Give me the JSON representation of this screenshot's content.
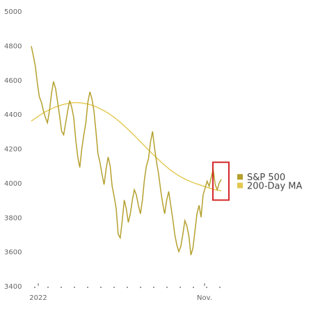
{
  "chart_data": {
    "type": "line",
    "title": "",
    "xlabel": "",
    "ylabel": "",
    "ylim": [
      3400,
      5000
    ],
    "y_ticks": [
      "5000",
      "4800",
      "4600",
      "4400",
      "4200",
      "4000",
      "3800",
      "3600",
      "3400"
    ],
    "x_tick_labels": [
      "2022",
      "Nov."
    ],
    "grid": false,
    "legend_position": "right",
    "highlight_box_color": "#d62728",
    "series": [
      {
        "name": "S&P 500",
        "color": "#b5a02e",
        "values": [
          4796,
          4740,
          4680,
          4580,
          4500,
          4470,
          4420,
          4380,
          4350,
          4420,
          4520,
          4590,
          4550,
          4470,
          4390,
          4300,
          4280,
          4350,
          4420,
          4480,
          4440,
          4380,
          4250,
          4150,
          4090,
          4200,
          4280,
          4350,
          4470,
          4530,
          4490,
          4420,
          4300,
          4170,
          4120,
          4050,
          3990,
          4080,
          4150,
          4100,
          3980,
          3920,
          3850,
          3700,
          3680,
          3780,
          3900,
          3850,
          3770,
          3820,
          3900,
          3960,
          3930,
          3870,
          3820,
          3900,
          4020,
          4100,
          4140,
          4240,
          4300,
          4200,
          4120,
          4050,
          3960,
          3880,
          3820,
          3900,
          3950,
          3870,
          3790,
          3700,
          3640,
          3600,
          3630,
          3700,
          3780,
          3750,
          3690,
          3580,
          3620,
          3720,
          3820,
          3870,
          3800,
          3930,
          3970,
          4010,
          3980,
          4030,
          4080,
          3990,
          3960,
          4000,
          4020
        ]
      },
      {
        "name": "200-Day MA",
        "color": "#e3c84f",
        "values": [
          4360,
          4368,
          4376,
          4384,
          4392,
          4400,
          4408,
          4415,
          4420,
          4426,
          4432,
          4437,
          4442,
          4446,
          4450,
          4454,
          4457,
          4460,
          4462,
          4464,
          4466,
          4467,
          4467,
          4467,
          4466,
          4465,
          4463,
          4461,
          4459,
          4456,
          4452,
          4448,
          4443,
          4438,
          4432,
          4426,
          4420,
          4413,
          4406,
          4398,
          4390,
          4381,
          4372,
          4363,
          4353,
          4343,
          4332,
          4321,
          4310,
          4299,
          4288,
          4276,
          4264,
          4252,
          4240,
          4228,
          4216,
          4204,
          4192,
          4180,
          4168,
          4157,
          4146,
          4135,
          4124,
          4113,
          4103,
          4093,
          4083,
          4074,
          4065,
          4057,
          4049,
          4042,
          4035,
          4029,
          4023,
          4017,
          4012,
          4007,
          4002,
          3998,
          3994,
          3990,
          3986,
          3982,
          3978,
          3974,
          3970,
          3966,
          3963,
          3960,
          3958,
          3956,
          3955
        ]
      }
    ]
  }
}
